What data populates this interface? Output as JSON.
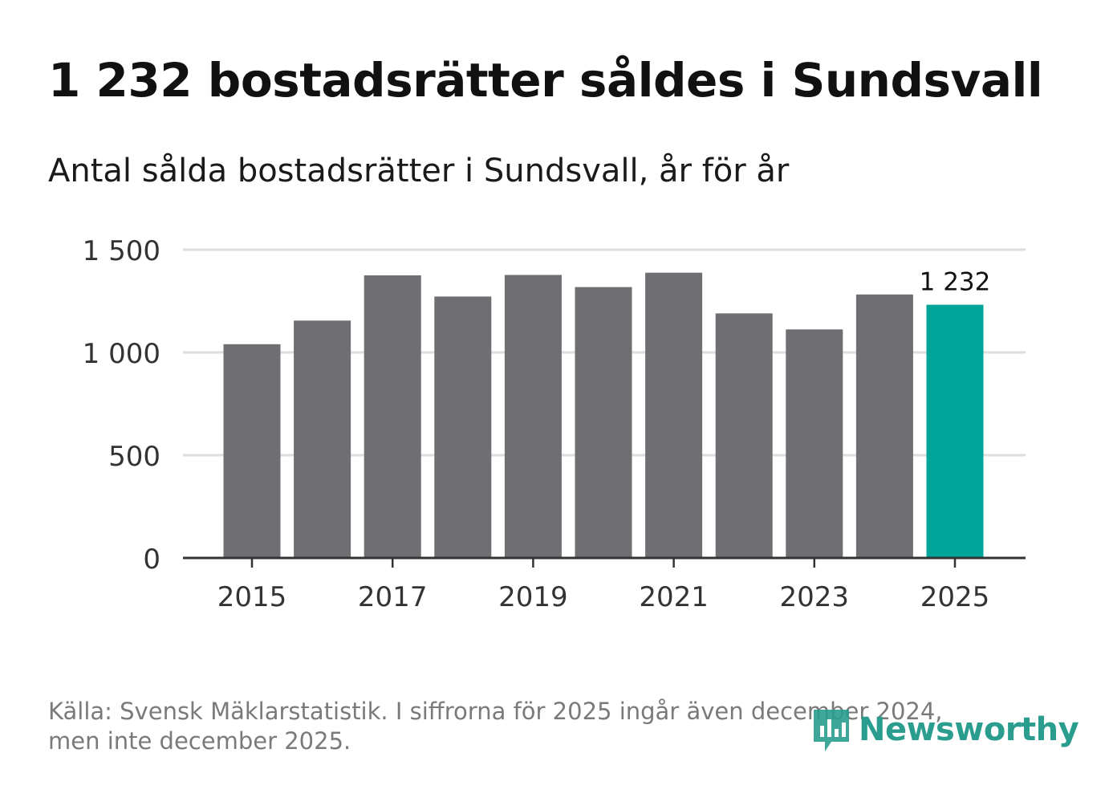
{
  "header": {
    "title": "1 232 bostadsrätter såldes i Sundsvall",
    "subtitle": "Antal sålda bostadsrätter i Sundsvall, år för år"
  },
  "footer": {
    "source_line1": "Källa: Svensk Mäklarstatistik. I siffrorna för 2025 ingår även december 2024,",
    "source_line2": "men inte december 2025."
  },
  "logo": {
    "text": "Newsworthy"
  },
  "colors": {
    "bar": "#6f6e73",
    "highlight": "#00a59a",
    "grid": "#dddddd",
    "axis": "#333333",
    "logo": "#2a9d8f"
  },
  "chart_data": {
    "type": "bar",
    "title": "1 232 bostadsrätter såldes i Sundsvall",
    "subtitle": "Antal sålda bostadsrätter i Sundsvall, år för år",
    "xlabel": "",
    "ylabel": "",
    "categories": [
      "2015",
      "2016",
      "2017",
      "2018",
      "2019",
      "2020",
      "2021",
      "2022",
      "2023",
      "2024",
      "2025"
    ],
    "values": [
      1040,
      1155,
      1375,
      1272,
      1377,
      1318,
      1388,
      1190,
      1112,
      1282,
      1232
    ],
    "highlight_index": 10,
    "highlight_label": "1 232",
    "ylim": [
      0,
      1500
    ],
    "yticks": [
      0,
      500,
      1000,
      1500
    ],
    "ytick_labels": [
      "0",
      "500",
      "1 000",
      "1 500"
    ],
    "xtick_labels": [
      "2015",
      "2017",
      "2019",
      "2021",
      "2023",
      "2025"
    ],
    "grid": true,
    "legend": "none"
  }
}
